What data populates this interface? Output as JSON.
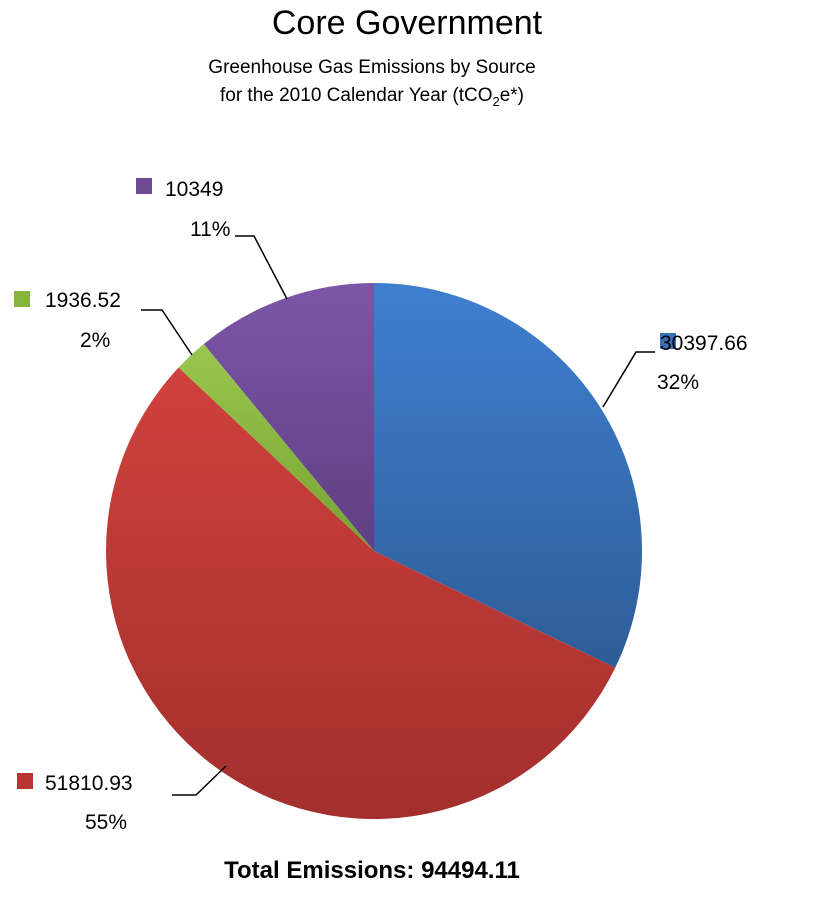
{
  "title": "Core Government",
  "subtitle_line1": "Greenhouse Gas Emissions by Source",
  "subtitle_line2_prefix": "for the 2010 Calendar Year (tCO",
  "subtitle_line2_sub": "2",
  "subtitle_line2_suffix": "e*)",
  "total_label": "Total Emissions: 94494.11",
  "chart_data": {
    "type": "pie",
    "title": "Core Government",
    "subtitle": "Greenhouse Gas Emissions by Source for the 2010 Calendar Year (tCO2e*)",
    "start_angle_deg": 0,
    "direction": "clockwise",
    "slices": [
      {
        "value": 30397.66,
        "value_label": "30397.66",
        "percent_label": "32%",
        "color": "#3b6fb5"
      },
      {
        "value": 51810.93,
        "value_label": "51810.93",
        "percent_label": "55%",
        "color": "#b93533"
      },
      {
        "value": 1936.52,
        "value_label": "1936.52",
        "percent_label": "2%",
        "color": "#85b53c"
      },
      {
        "value": 10349,
        "value_label": "10349",
        "percent_label": "11%",
        "color": "#6d4a92"
      }
    ]
  }
}
